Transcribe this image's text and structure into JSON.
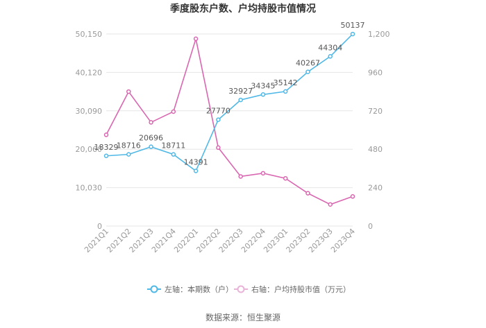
{
  "page": {
    "title": "季度股东户数、户均持股市值情况",
    "source": "数据来源：恒生聚源"
  },
  "chart_data": {
    "type": "line",
    "title": "季度股东户数、户均持股市值情况",
    "categories": [
      "2021Q1",
      "2021Q2",
      "2021Q3",
      "2021Q4",
      "2022Q1",
      "2022Q2",
      "2022Q3",
      "2022Q4",
      "2023Q1",
      "2023Q2",
      "2023Q3",
      "2023Q4"
    ],
    "left_axis": {
      "ylim": [
        0,
        50150
      ],
      "ticks": [
        "0",
        "10,030",
        "20,060",
        "30,090",
        "40,120",
        "50,150"
      ],
      "tick_values": [
        0,
        10030,
        20060,
        30090,
        40120,
        50150
      ]
    },
    "right_axis": {
      "ylim": [
        0,
        1200
      ],
      "ticks": [
        "0",
        "240",
        "480",
        "720",
        "960",
        "1,200"
      ],
      "tick_values": [
        0,
        240,
        480,
        720,
        960,
        1200
      ]
    },
    "series": [
      {
        "name": "左轴：本期数（户）",
        "axis": "left",
        "color": "#4fb8e6",
        "values": [
          18329,
          18716,
          20696,
          18711,
          14391,
          27770,
          32927,
          34345,
          35142,
          40267,
          44304,
          50137
        ],
        "labels": [
          "18329",
          "18716",
          "20696",
          "18711",
          "14391",
          "27770",
          "32927",
          "34345",
          "35142",
          "40267",
          "44304",
          "50137"
        ]
      },
      {
        "name": "右轴：户均持股市值（万元）",
        "axis": "right",
        "color": "#d966b0",
        "values": [
          570,
          840,
          648,
          715,
          1170,
          490,
          310,
          330,
          298,
          205,
          135,
          185
        ]
      }
    ],
    "grid": true,
    "legend_position": "bottom"
  }
}
